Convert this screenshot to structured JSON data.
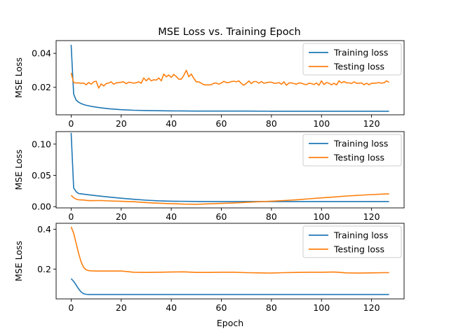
{
  "figure": {
    "title": "MSE Loss vs. Training Epoch"
  },
  "colors": {
    "training": "#1f77b4",
    "testing": "#ff7f0e"
  },
  "chart_data": [
    {
      "type": "line",
      "title": "MSE Loss vs. Training Epoch",
      "xlabel": "",
      "ylabel": "MSE Loss",
      "xlim": [
        -6,
        133
      ],
      "ylim": [
        0.0038,
        0.0475
      ],
      "xticks": [
        0,
        20,
        40,
        60,
        80,
        100,
        120
      ],
      "yticks": [
        0.02,
        0.04
      ],
      "ytick_labels": [
        "0.02",
        "0.04"
      ],
      "legend": "top-right",
      "grid": false,
      "series": [
        {
          "name": "Training loss",
          "x": [
            0,
            1,
            2,
            3,
            4,
            5,
            6,
            8,
            10,
            12,
            15,
            20,
            25,
            30,
            40,
            50,
            60,
            70,
            80,
            90,
            100,
            110,
            120,
            127
          ],
          "values": [
            0.045,
            0.016,
            0.0125,
            0.0112,
            0.0104,
            0.0098,
            0.0094,
            0.0088,
            0.0083,
            0.0079,
            0.0074,
            0.0068,
            0.0065,
            0.0063,
            0.0061,
            0.006,
            0.006,
            0.006,
            0.0059,
            0.0059,
            0.0059,
            0.0059,
            0.0059,
            0.0059
          ]
        },
        {
          "name": "Testing loss",
          "x": [
            0,
            1,
            2,
            3,
            4,
            5,
            6,
            7,
            8,
            9,
            10,
            11,
            12,
            13,
            14,
            15,
            16,
            17,
            18,
            19,
            20,
            21,
            22,
            23,
            24,
            25,
            26,
            27,
            28,
            29,
            30,
            31,
            32,
            33,
            34,
            35,
            36,
            37,
            38,
            39,
            40,
            41,
            42,
            43,
            44,
            45,
            46,
            47,
            48,
            49,
            50,
            51,
            52,
            53,
            54,
            55,
            56,
            57,
            58,
            59,
            60,
            61,
            62,
            63,
            64,
            65,
            66,
            67,
            68,
            69,
            70,
            71,
            72,
            73,
            74,
            75,
            76,
            77,
            78,
            79,
            80,
            81,
            82,
            83,
            84,
            85,
            86,
            87,
            88,
            89,
            90,
            91,
            92,
            93,
            94,
            95,
            96,
            97,
            98,
            99,
            100,
            101,
            102,
            103,
            104,
            105,
            106,
            107,
            108,
            109,
            110,
            111,
            112,
            113,
            114,
            115,
            116,
            117,
            118,
            119,
            120,
            121,
            122,
            123,
            124,
            125,
            126,
            127
          ],
          "values": [
            0.0285,
            0.0228,
            0.0225,
            0.0226,
            0.0224,
            0.0225,
            0.0215,
            0.0228,
            0.0218,
            0.0232,
            0.0236,
            0.0195,
            0.022,
            0.0208,
            0.0222,
            0.0225,
            0.0232,
            0.0218,
            0.0226,
            0.0228,
            0.023,
            0.0232,
            0.0221,
            0.023,
            0.0228,
            0.0224,
            0.0227,
            0.0232,
            0.0224,
            0.0255,
            0.0238,
            0.0253,
            0.0238,
            0.0245,
            0.0242,
            0.0255,
            0.0238,
            0.0278,
            0.0262,
            0.0272,
            0.0258,
            0.0276,
            0.0263,
            0.0248,
            0.0248,
            0.027,
            0.03,
            0.0262,
            0.0278,
            0.0252,
            0.0232,
            0.0232,
            0.0224,
            0.0215,
            0.0214,
            0.0214,
            0.0215,
            0.0224,
            0.0225,
            0.0218,
            0.0225,
            0.0235,
            0.0228,
            0.0228,
            0.0234,
            0.0236,
            0.0232,
            0.0238,
            0.0222,
            0.0212,
            0.0224,
            0.0237,
            0.0222,
            0.0234,
            0.0234,
            0.0224,
            0.0234,
            0.0224,
            0.0227,
            0.023,
            0.023,
            0.0224,
            0.0224,
            0.0228,
            0.0218,
            0.0232,
            0.0212,
            0.0226,
            0.0226,
            0.0222,
            0.0218,
            0.0226,
            0.0224,
            0.0218,
            0.0216,
            0.0224,
            0.0222,
            0.0216,
            0.0225,
            0.0212,
            0.0238,
            0.0216,
            0.0228,
            0.0224,
            0.0215,
            0.0224,
            0.0214,
            0.0238,
            0.0226,
            0.0234,
            0.0226,
            0.0226,
            0.0222,
            0.0232,
            0.0224,
            0.0224,
            0.0226,
            0.0215,
            0.0224,
            0.0215,
            0.0224,
            0.0224,
            0.0225,
            0.0228,
            0.0224,
            0.0227,
            0.0238,
            0.0229
          ]
        }
      ]
    },
    {
      "type": "line",
      "xlabel": "",
      "ylabel": "MSE Loss",
      "xlim": [
        -6,
        133
      ],
      "ylim": [
        -0.002,
        0.12
      ],
      "xticks": [
        0,
        20,
        40,
        60,
        80,
        100,
        120
      ],
      "yticks": [
        0.0,
        0.05,
        0.1
      ],
      "ytick_labels": [
        "0.00",
        "0.05",
        "0.10"
      ],
      "legend": "top-right",
      "grid": false,
      "series": [
        {
          "name": "Training loss",
          "x": [
            0,
            1,
            2,
            3,
            4,
            6,
            8,
            10,
            15,
            20,
            25,
            30,
            35,
            40,
            50,
            60,
            70,
            80,
            90,
            100,
            110,
            120,
            127
          ],
          "values": [
            0.118,
            0.03,
            0.024,
            0.021,
            0.0205,
            0.0195,
            0.0185,
            0.0175,
            0.0155,
            0.0135,
            0.0118,
            0.0103,
            0.0093,
            0.0087,
            0.0083,
            0.0082,
            0.0082,
            0.0082,
            0.0082,
            0.0082,
            0.0082,
            0.0082,
            0.0082
          ]
        },
        {
          "name": "Testing loss",
          "x": [
            0,
            1,
            2,
            3,
            4,
            5,
            6,
            8,
            10,
            12,
            15,
            20,
            25,
            30,
            35,
            40,
            45,
            50,
            55,
            60,
            65,
            70,
            75,
            80,
            85,
            90,
            95,
            100,
            105,
            110,
            115,
            120,
            125,
            127
          ],
          "values": [
            0.018,
            0.0145,
            0.012,
            0.011,
            0.0108,
            0.0106,
            0.01,
            0.0095,
            0.0098,
            0.0098,
            0.0092,
            0.0085,
            0.0078,
            0.0065,
            0.0055,
            0.0048,
            0.004,
            0.0038,
            0.0045,
            0.0052,
            0.006,
            0.0068,
            0.0078,
            0.0088,
            0.0098,
            0.011,
            0.0125,
            0.014,
            0.0155,
            0.017,
            0.0182,
            0.0193,
            0.0202,
            0.0205
          ]
        }
      ]
    },
    {
      "type": "line",
      "xlabel": "Epoch",
      "ylabel": "MSE Loss",
      "xlim": [
        -6,
        133
      ],
      "ylim": [
        0.05,
        0.43
      ],
      "xticks": [
        0,
        20,
        40,
        60,
        80,
        100,
        120
      ],
      "yticks": [
        0.2,
        0.4
      ],
      "ytick_labels": [
        "0.2",
        "0.4"
      ],
      "legend": "top-right",
      "grid": false,
      "series": [
        {
          "name": "Training loss",
          "x": [
            0,
            1,
            2,
            3,
            4,
            5,
            6,
            7,
            8,
            10,
            20,
            40,
            60,
            80,
            100,
            120,
            127
          ],
          "values": [
            0.152,
            0.138,
            0.12,
            0.1,
            0.085,
            0.076,
            0.073,
            0.072,
            0.072,
            0.072,
            0.072,
            0.072,
            0.072,
            0.072,
            0.072,
            0.072,
            0.072
          ]
        },
        {
          "name": "Testing loss",
          "x": [
            0,
            1,
            2,
            3,
            4,
            5,
            6,
            7,
            8,
            10,
            15,
            20,
            22,
            25,
            30,
            35,
            40,
            45,
            50,
            55,
            60,
            65,
            70,
            75,
            80,
            85,
            90,
            95,
            100,
            105,
            110,
            115,
            120,
            125,
            127
          ],
          "values": [
            0.412,
            0.38,
            0.33,
            0.278,
            0.235,
            0.208,
            0.196,
            0.192,
            0.191,
            0.19,
            0.19,
            0.19,
            0.188,
            0.184,
            0.183,
            0.184,
            0.185,
            0.186,
            0.183,
            0.183,
            0.184,
            0.184,
            0.182,
            0.181,
            0.18,
            0.182,
            0.183,
            0.184,
            0.184,
            0.185,
            0.181,
            0.18,
            0.181,
            0.182,
            0.182
          ]
        }
      ]
    }
  ]
}
